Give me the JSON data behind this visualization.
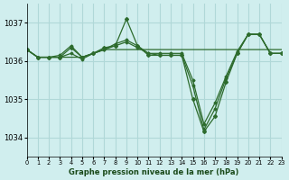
{
  "title": "Graphe pression niveau de la mer (hPa)",
  "bg_color": "#d0eeee",
  "grid_color": "#b0d8d8",
  "line_color": "#2d6b2d",
  "xlim": [
    0,
    23
  ],
  "ylim": [
    1033.5,
    1037.5
  ],
  "yticks": [
    1034,
    1035,
    1036,
    1037
  ],
  "xticks": [
    0,
    1,
    2,
    3,
    4,
    5,
    6,
    7,
    8,
    9,
    10,
    11,
    12,
    13,
    14,
    15,
    16,
    17,
    18,
    19,
    20,
    21,
    22,
    23
  ],
  "series": [
    [
      1036.3,
      1036.1,
      1036.1,
      1036.1,
      1036.35,
      1036.1,
      1036.2,
      1036.35,
      1036.4,
      1037.1,
      1036.4,
      1036.15,
      1036.15,
      1036.15,
      1036.15,
      1035.0,
      1034.15,
      1034.55,
      1035.45,
      1036.2,
      1036.7,
      1036.7,
      1036.2,
      1036.2
    ],
    [
      1036.3,
      1036.1,
      1036.1,
      1036.1,
      1036.2,
      1036.05,
      1036.2,
      1036.3,
      1036.4,
      1036.5,
      1036.35,
      1036.2,
      1036.15,
      1036.15,
      1036.15,
      1035.35,
      1034.2,
      1034.75,
      1035.55,
      1036.2,
      1036.7,
      1036.7,
      1036.2,
      1036.2
    ],
    [
      1036.3,
      1036.1,
      1036.1,
      1036.15,
      1036.4,
      1036.1,
      1036.2,
      1036.3,
      1036.45,
      1036.55,
      1036.4,
      1036.2,
      1036.2,
      1036.2,
      1036.2,
      1035.5,
      1034.35,
      1034.9,
      1035.6,
      1036.25,
      1036.7,
      1036.7,
      1036.2,
      1036.2
    ],
    [
      1036.3,
      1036.1,
      1036.1,
      1036.1,
      1036.1,
      1036.1,
      1036.2,
      1036.3,
      1036.3,
      1036.3,
      1036.3,
      1036.3,
      1036.3,
      1036.3,
      1036.3,
      1036.3,
      1036.3,
      1036.3,
      1036.3,
      1036.3,
      1036.3,
      1036.3,
      1036.3,
      1036.3
    ]
  ]
}
